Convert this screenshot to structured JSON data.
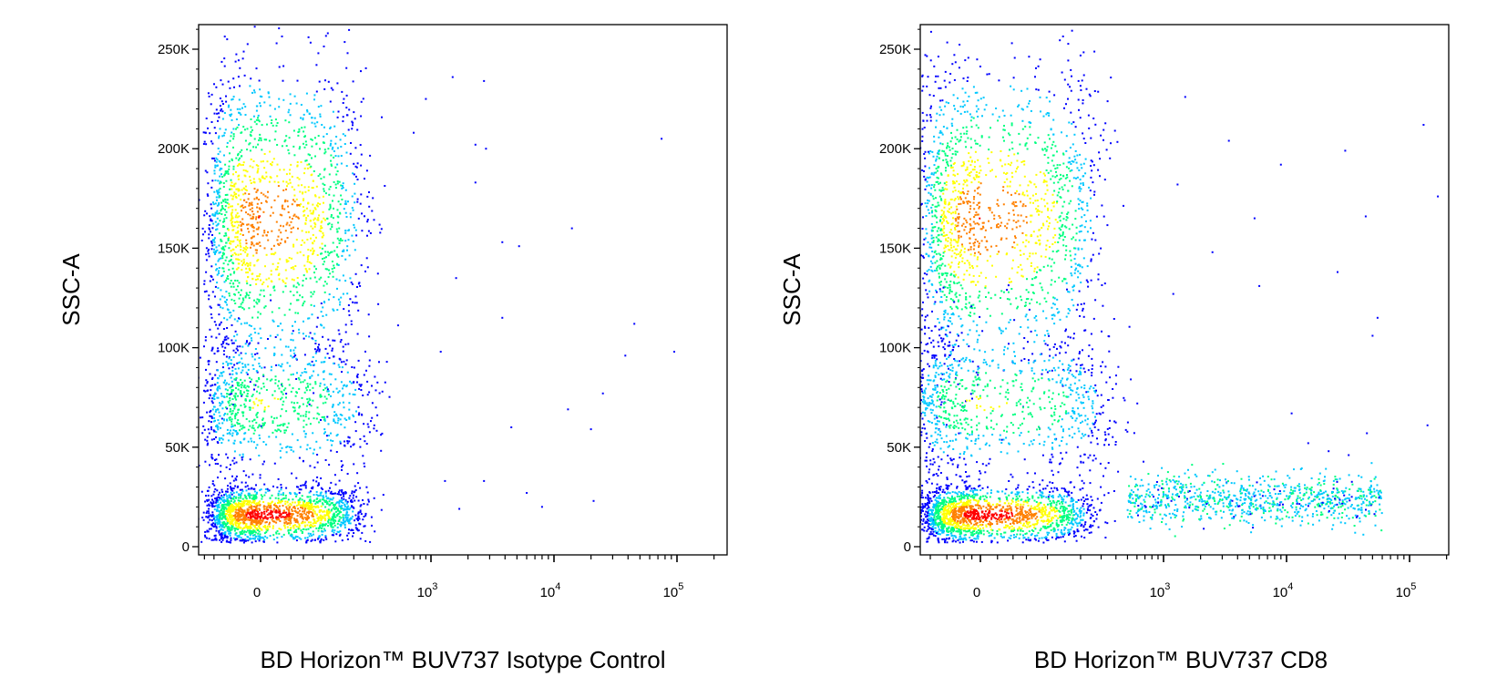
{
  "figure": {
    "panels": [
      {
        "ylabel": "SSC-A",
        "xlabel": "BD Horizon™ BUV737 Isotype Control",
        "y_ticks": [
          "250K",
          "200K",
          "150K",
          "100K",
          "50K",
          "0"
        ],
        "x_ticks": [
          {
            "base": "0",
            "exp": ""
          },
          {
            "base": "10",
            "exp": "3"
          },
          {
            "base": "10",
            "exp": "4"
          },
          {
            "base": "10",
            "exp": "5"
          }
        ]
      },
      {
        "ylabel": "SSC-A",
        "xlabel": "BD Horizon™ BUV737 CD8",
        "y_ticks": [
          "250K",
          "200K",
          "150K",
          "100K",
          "50K",
          "0"
        ],
        "x_ticks": [
          {
            "base": "0",
            "exp": ""
          },
          {
            "base": "10",
            "exp": "3"
          },
          {
            "base": "10",
            "exp": "4"
          },
          {
            "base": "10",
            "exp": "5"
          }
        ]
      }
    ]
  },
  "chart_data": [
    {
      "type": "scatter",
      "subtype": "flow-cytometry density dot plot",
      "xlabel": "BD Horizon™ BUV737 Isotype Control",
      "ylabel": "SSC-A",
      "x_scale": "biexponential",
      "x_ticks": [
        "0",
        "10^3",
        "10^4",
        "10^5"
      ],
      "ylim": [
        0,
        262144
      ],
      "y_ticks": [
        0,
        50000,
        100000,
        150000,
        200000,
        250000
      ],
      "density_colormap": [
        "#0000ff",
        "#00c8ff",
        "#00ff80",
        "#ffff00",
        "#ff8000",
        "#ff0000"
      ],
      "populations": [
        {
          "x_center": 0,
          "x_spread": 120,
          "y_center": 165000,
          "y_spread": 38000,
          "density": "high"
        },
        {
          "x_center": 0,
          "x_spread": 140,
          "y_center": 72000,
          "y_spread": 18000,
          "density": "medium"
        },
        {
          "x_center": 0,
          "x_spread": 110,
          "y_center": 16000,
          "y_spread": 7000,
          "density": "very high"
        }
      ],
      "sparse_events": [
        [
          900,
          225000
        ],
        [
          1500,
          236000
        ],
        [
          2700,
          234000
        ],
        [
          700,
          208000
        ],
        [
          2300,
          202000
        ],
        [
          2800,
          200000
        ],
        [
          75000,
          205000
        ],
        [
          2300,
          183000
        ],
        [
          14000,
          160000
        ],
        [
          3800,
          153000
        ],
        [
          5200,
          151000
        ],
        [
          1600,
          135000
        ],
        [
          3800,
          115000
        ],
        [
          1200,
          98000
        ],
        [
          45000,
          112000
        ],
        [
          95000,
          98000
        ],
        [
          38000,
          96000
        ],
        [
          25000,
          77000
        ],
        [
          13000,
          69000
        ],
        [
          4500,
          60000
        ],
        [
          20000,
          59000
        ],
        [
          1300,
          33000
        ],
        [
          2700,
          33000
        ],
        [
          6000,
          27000
        ],
        [
          8000,
          20000
        ],
        [
          21000,
          23000
        ],
        [
          1700,
          19000
        ]
      ]
    },
    {
      "type": "scatter",
      "subtype": "flow-cytometry density dot plot",
      "xlabel": "BD Horizon™ BUV737 CD8",
      "ylabel": "SSC-A",
      "x_scale": "biexponential",
      "x_ticks": [
        "0",
        "10^3",
        "10^4",
        "10^5"
      ],
      "ylim": [
        0,
        262144
      ],
      "y_ticks": [
        0,
        50000,
        100000,
        150000,
        200000,
        250000
      ],
      "density_colormap": [
        "#0000ff",
        "#00c8ff",
        "#00ff80",
        "#ffff00",
        "#ff8000",
        "#ff0000"
      ],
      "populations": [
        {
          "x_center": 0,
          "x_spread": 140,
          "y_center": 165000,
          "y_spread": 38000,
          "density": "high"
        },
        {
          "x_center": 0,
          "x_spread": 180,
          "y_center": 72000,
          "y_spread": 18000,
          "density": "medium"
        },
        {
          "x_center": 0,
          "x_spread": 120,
          "y_center": 16000,
          "y_spread": 7000,
          "density": "very high"
        },
        {
          "x_from": 500,
          "x_to": 60000,
          "y_center": 24000,
          "y_spread": 6000,
          "density": "medium",
          "note": "CD8+ events"
        }
      ],
      "sparse_events": [
        [
          1500,
          226000
        ],
        [
          3400,
          204000
        ],
        [
          9000,
          192000
        ],
        [
          30000,
          199000
        ],
        [
          1300,
          182000
        ],
        [
          5500,
          165000
        ],
        [
          44000,
          166000
        ],
        [
          130000,
          212000
        ],
        [
          170000,
          176000
        ],
        [
          2500,
          148000
        ],
        [
          6000,
          131000
        ],
        [
          26000,
          138000
        ],
        [
          55000,
          115000
        ],
        [
          50000,
          106000
        ],
        [
          1200,
          127000
        ],
        [
          11000,
          67000
        ],
        [
          15000,
          52000
        ],
        [
          22000,
          48000
        ],
        [
          32000,
          46000
        ],
        [
          140000,
          61000
        ],
        [
          45000,
          57000
        ]
      ]
    }
  ]
}
